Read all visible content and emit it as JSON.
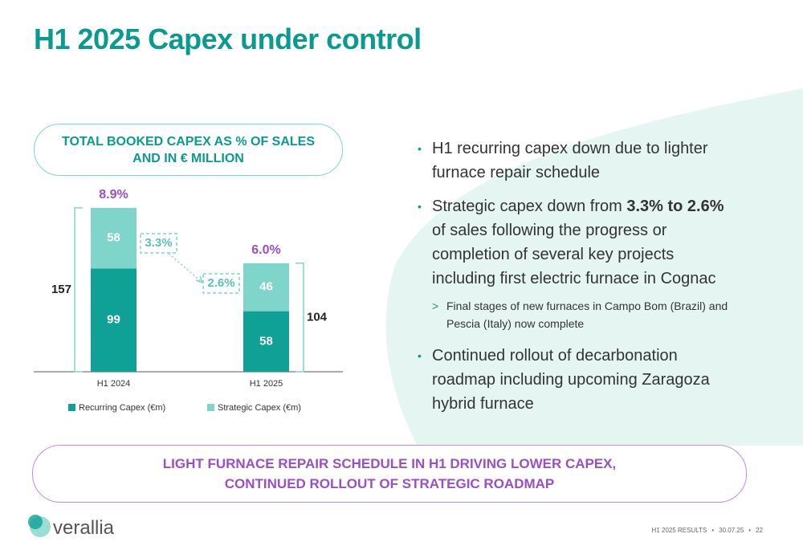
{
  "title": "H1 2025 Capex under control",
  "chart_data": {
    "type": "bar",
    "stacked": true,
    "title": "TOTAL BOOKED CAPEX AS % OF SALES AND IN € MILLION",
    "categories": [
      "H1 2024",
      "H1 2025"
    ],
    "series": [
      {
        "name": "Recurring Capex (€m)",
        "color": "#0fa096",
        "values": [
          99,
          58
        ]
      },
      {
        "name": "Strategic Capex (€m)",
        "color": "#80d5ca",
        "values": [
          58,
          46
        ]
      }
    ],
    "totals": [
      157,
      104
    ],
    "pct_of_sales": [
      8.9,
      6.0
    ],
    "pct_of_sales_labels": [
      "8.9%",
      "6.0%"
    ],
    "strategic_pct": [
      3.3,
      2.6
    ],
    "strategic_pct_labels": [
      "3.3%",
      "2.6%"
    ]
  },
  "bullets": [
    {
      "text": "H1 recurring capex down due to lighter furnace repair schedule"
    },
    {
      "text": "Strategic capex down from ",
      "bold": "3.3% to 2.6%",
      "rest": " of sales following the progress or completion of several key projects including first electric furnace in Cognac",
      "sub": "Final stages of new furnaces in Campo Bom (Brazil) and Pescia (Italy) now complete"
    },
    {
      "text": "Continued rollout of decarbonation roadmap including upcoming Zaragoza hybrid furnace"
    }
  ],
  "conclusion": "LIGHT FURNACE REPAIR SCHEDULE IN H1 DRIVING LOWER CAPEX, CONTINUED ROLLOUT OF STRATEGIC ROADMAP",
  "footer": {
    "logo": "verallia",
    "section": "H1 2025 RESULTS",
    "date": "30.07.25",
    "page": "22"
  }
}
